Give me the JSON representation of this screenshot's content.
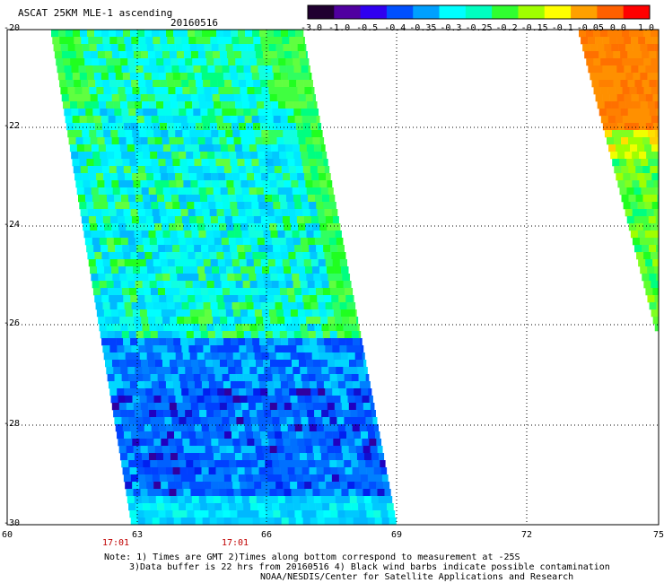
{
  "header": {
    "title": "ASCAT 25KM MLE-1 ascending",
    "date": "20160516"
  },
  "colorbar": {
    "labels": [
      "-3.0",
      "-1.0",
      "-0.5",
      "-0.4",
      "-0.35",
      "-0.3",
      "-0.25",
      "-0.2",
      "-0.15",
      "-0.1",
      "-0.05",
      "0.0",
      "1.0"
    ],
    "colors": [
      "#200030",
      "#5000a0",
      "#3000f0",
      "#0050ff",
      "#00a0ff",
      "#00ffff",
      "#00ffc0",
      "#30ff30",
      "#a0ff00",
      "#ffff00",
      "#ffa000",
      "#ff6000",
      "#ff0000"
    ]
  },
  "axes": {
    "x_labels": [
      "60",
      "63",
      "66",
      "69",
      "72",
      "75"
    ],
    "y_labels": [
      "-20",
      "-22",
      "-24",
      "-26",
      "-28",
      "-30"
    ]
  },
  "times": [
    "17:01",
    "17:01"
  ],
  "notes": [
    "Note: 1) Times are GMT 2)Times along bottom correspond to measurement at -25S",
    "3)Data buffer is 22 hrs from 20160516 4) Black wind barbs indicate possible contamination",
    "NOAA/NESDIS/Center for Satellite Applications and Research"
  ]
}
